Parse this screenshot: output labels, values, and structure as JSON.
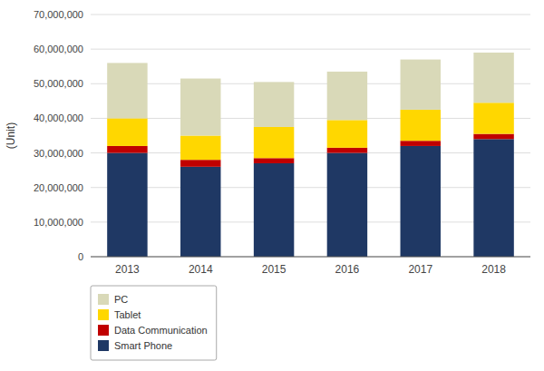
{
  "chart_data": {
    "type": "bar",
    "stacked": true,
    "categories": [
      "2013",
      "2014",
      "2015",
      "2016",
      "2017",
      "2018"
    ],
    "series": [
      {
        "name": "Smart Phone",
        "color": "#1F3864",
        "values": [
          30000000,
          26000000,
          27000000,
          30000000,
          32000000,
          34000000
        ]
      },
      {
        "name": "Data Communication",
        "color": "#C00000",
        "values": [
          2000000,
          2000000,
          1500000,
          1500000,
          1500000,
          1500000
        ]
      },
      {
        "name": "Tablet",
        "color": "#FFD700",
        "values": [
          8000000,
          7000000,
          9000000,
          8000000,
          9000000,
          9000000
        ]
      },
      {
        "name": "PC",
        "color": "#D9D9B8",
        "values": [
          16000000,
          16500000,
          13000000,
          14000000,
          14500000,
          14500000
        ]
      }
    ],
    "y_label": "(Unit)",
    "ylim": [
      0,
      70000000
    ],
    "yticks": [
      0,
      {
        "value": 10000000,
        "label": "10,000,000"
      },
      {
        "value": 20000000,
        "label": "20,000,000"
      },
      {
        "value": 30000000,
        "label": "30,000,000"
      },
      {
        "value": 40000000,
        "label": "40,000,000"
      },
      {
        "value": 50000000,
        "label": "50,000,000"
      },
      {
        "value": 60000000,
        "label": "60,000,000"
      },
      {
        "value": 70000000,
        "label": "70,000,000"
      }
    ],
    "grid": true,
    "legend": "lower left"
  }
}
